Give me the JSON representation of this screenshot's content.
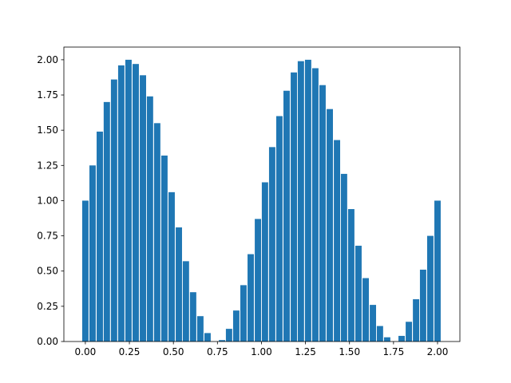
{
  "chart_data": {
    "type": "bar",
    "x": [
      0,
      0.041,
      0.082,
      0.122,
      0.163,
      0.204,
      0.245,
      0.286,
      0.327,
      0.367,
      0.408,
      0.449,
      0.49,
      0.531,
      0.571,
      0.612,
      0.653,
      0.694,
      0.735,
      0.776,
      0.816,
      0.857,
      0.898,
      0.939,
      0.98,
      1.02,
      1.061,
      1.102,
      1.143,
      1.184,
      1.224,
      1.265,
      1.306,
      1.347,
      1.388,
      1.429,
      1.469,
      1.51,
      1.551,
      1.592,
      1.633,
      1.673,
      1.714,
      1.755,
      1.796,
      1.837,
      1.878,
      1.918,
      1.959,
      2.0
    ],
    "values": [
      1.0,
      1.25,
      1.49,
      1.7,
      1.86,
      1.96,
      2.0,
      1.97,
      1.89,
      1.74,
      1.55,
      1.32,
      1.06,
      0.81,
      0.57,
      0.35,
      0.18,
      0.06,
      0.0,
      0.01,
      0.09,
      0.22,
      0.4,
      0.62,
      0.87,
      1.13,
      1.38,
      1.6,
      1.78,
      1.91,
      1.99,
      2.0,
      1.94,
      1.82,
      1.65,
      1.43,
      1.19,
      0.94,
      0.68,
      0.45,
      0.26,
      0.11,
      0.03,
      0.0,
      0.04,
      0.14,
      0.3,
      0.51,
      0.75,
      1.0
    ],
    "color": "#1f77b4",
    "xlim": [
      -0.122,
      2.127
    ],
    "ylim": [
      0,
      2.09
    ],
    "xticks": [
      {
        "value": 0,
        "label": "0.00"
      },
      {
        "value": 0.25,
        "label": "0.25"
      },
      {
        "value": 0.5,
        "label": "0.50"
      },
      {
        "value": 0.75,
        "label": "0.75"
      },
      {
        "value": 1,
        "label": "1.00"
      },
      {
        "value": 1.25,
        "label": "1.25"
      },
      {
        "value": 1.5,
        "label": "1.50"
      },
      {
        "value": 1.75,
        "label": "1.75"
      },
      {
        "value": 2,
        "label": "2.00"
      }
    ],
    "yticks": [
      {
        "value": 0,
        "label": "0.00"
      },
      {
        "value": 0.25,
        "label": "0.25"
      },
      {
        "value": 0.5,
        "label": "0.50"
      },
      {
        "value": 0.75,
        "label": "0.75"
      },
      {
        "value": 1,
        "label": "1.00"
      },
      {
        "value": 1.25,
        "label": "1.25"
      },
      {
        "value": 1.5,
        "label": "1.50"
      },
      {
        "value": 1.75,
        "label": "1.75"
      },
      {
        "value": 2,
        "label": "2.00"
      }
    ]
  }
}
